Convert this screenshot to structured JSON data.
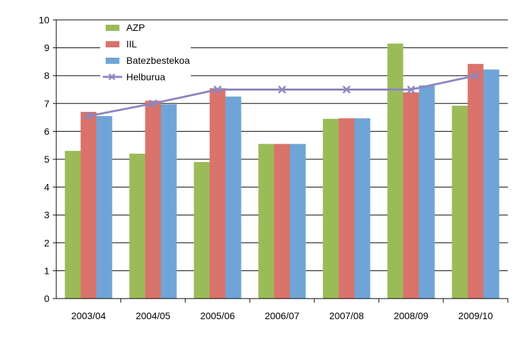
{
  "chart_data": {
    "type": "bar",
    "categories": [
      "2003/04",
      "2004/05",
      "2005/06",
      "2006/07",
      "2007/08",
      "2008/09",
      "2009/10"
    ],
    "series": [
      {
        "name": "AZP",
        "type": "bar",
        "color": "#9bbb59",
        "values": [
          5.3,
          5.2,
          4.9,
          5.55,
          6.45,
          9.15,
          6.92
        ]
      },
      {
        "name": "IIL",
        "type": "bar",
        "color": "#d9736b",
        "values": [
          6.7,
          7.1,
          7.55,
          5.55,
          6.47,
          7.4,
          8.42
        ]
      },
      {
        "name": "Batezbestekoa",
        "type": "bar",
        "color": "#6fa5d6",
        "values": [
          6.55,
          6.97,
          7.25,
          5.55,
          6.47,
          7.65,
          8.22
        ]
      },
      {
        "name": "Helburua",
        "type": "line",
        "color": "#8c86c0",
        "values": [
          6.55,
          7.0,
          7.5,
          7.5,
          7.5,
          7.5,
          8.0
        ]
      }
    ],
    "ylim": [
      0,
      10
    ],
    "yticks": [
      "0",
      "1",
      "2",
      "3",
      "4",
      "5",
      "6",
      "7",
      "8",
      "9",
      "10"
    ],
    "grid": true,
    "legend": "top-left"
  }
}
